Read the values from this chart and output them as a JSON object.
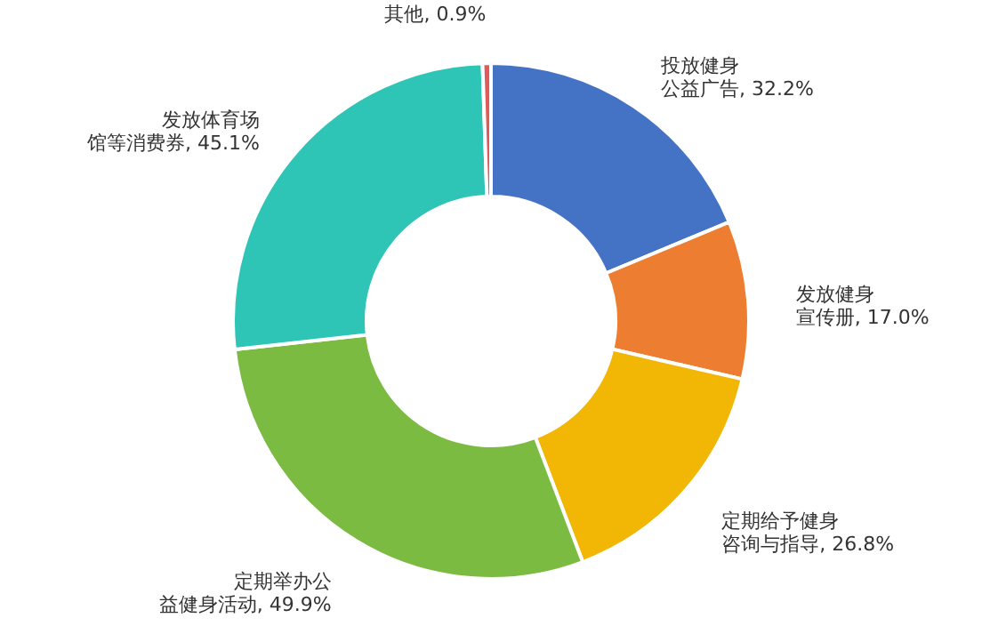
{
  "chart_data": {
    "type": "donut",
    "categories": [
      "投放健身公益广告",
      "发放健身宣传册",
      "定期给予健身咨询与指导",
      "定期举办公益健身活动",
      "发放体育场馆等消费券",
      "其他"
    ],
    "values": [
      32.2,
      17.0,
      26.8,
      49.9,
      45.1,
      0.9
    ],
    "value_labels": [
      "32.2%",
      "17.0%",
      "26.8%",
      "49.9%",
      "45.1%",
      "0.9%"
    ],
    "colors": [
      "#4472c4",
      "#ed7d31",
      "#f2b705",
      "#7cbb42",
      "#2ec4b6",
      "#e05a5a"
    ]
  }
}
